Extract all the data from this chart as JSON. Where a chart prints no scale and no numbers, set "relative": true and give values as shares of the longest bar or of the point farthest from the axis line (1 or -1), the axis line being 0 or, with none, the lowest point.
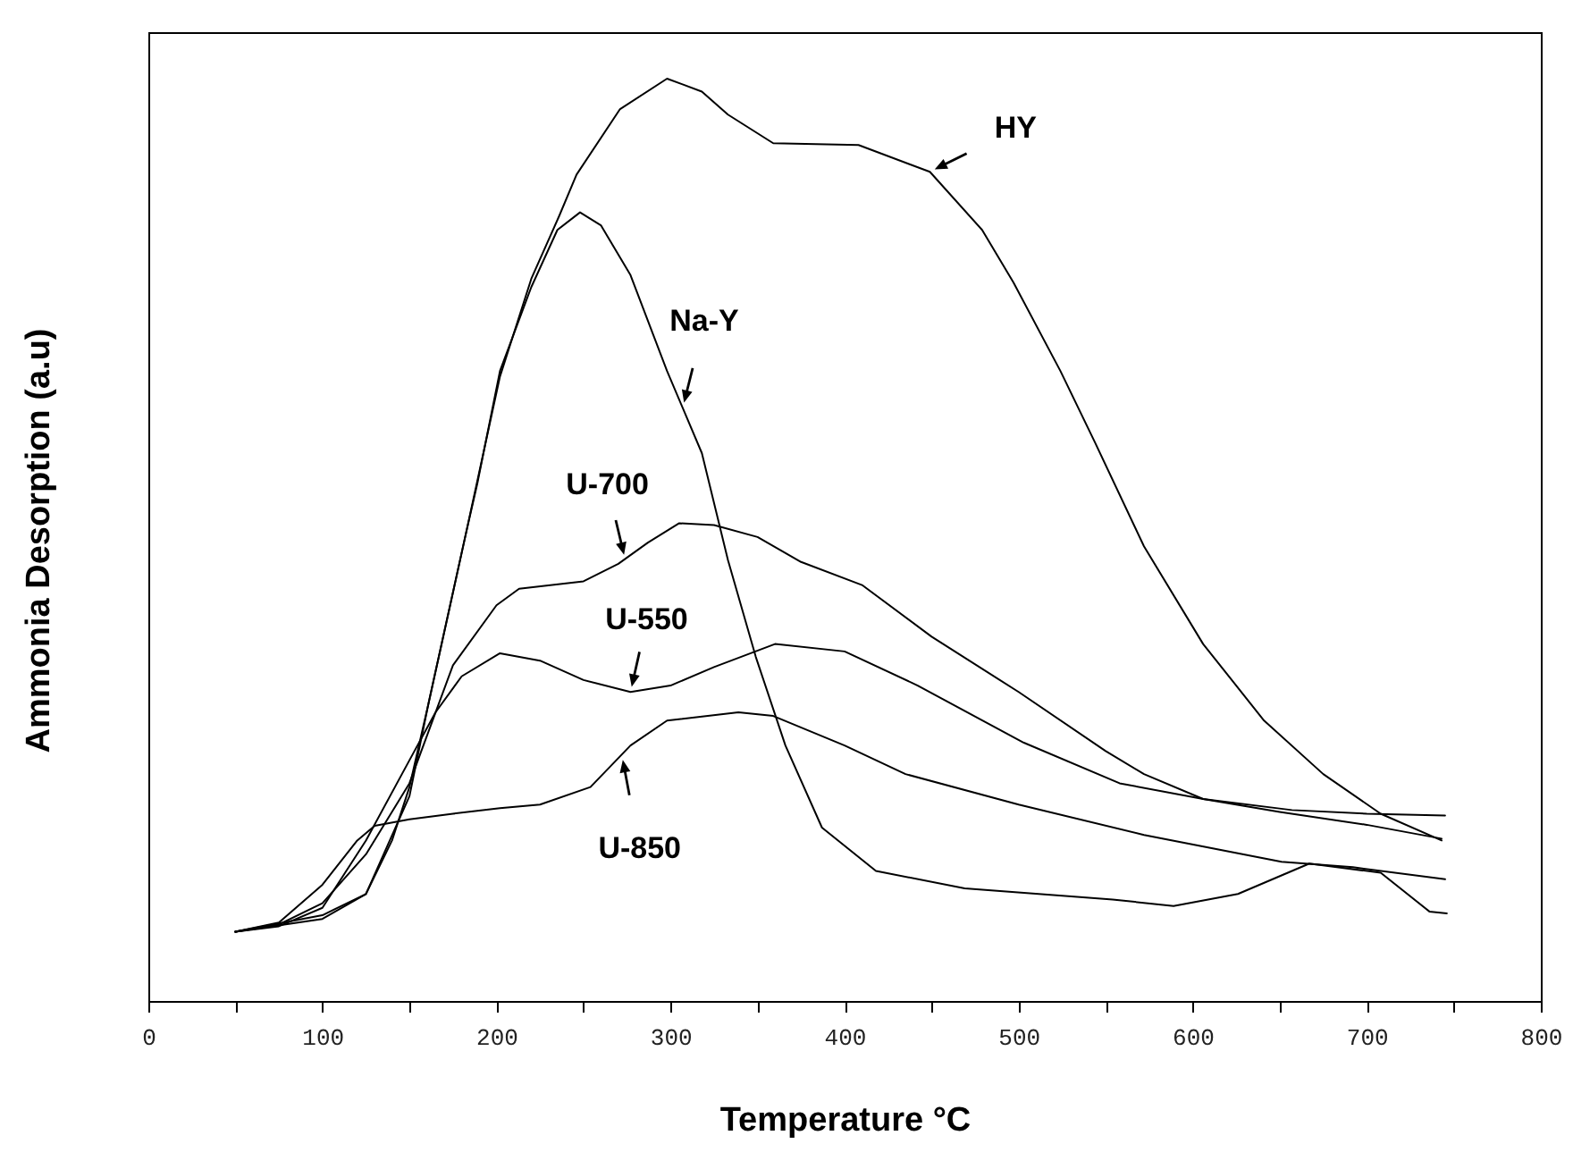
{
  "chart_data": {
    "type": "line",
    "relative": true,
    "xlabel": "Temperature °C",
    "ylabel": "Ammonia Desorption (a.u)",
    "xlim": [
      0,
      800
    ],
    "xticks": [
      0,
      {
        "value": 50,
        "label": null
      },
      100,
      {
        "value": 150,
        "label": null
      },
      200,
      {
        "value": 250,
        "label": null
      },
      300,
      {
        "value": 350,
        "label": null
      },
      400,
      {
        "value": 450,
        "label": null
      },
      500,
      {
        "value": 550,
        "label": null
      },
      600,
      {
        "value": 650,
        "label": null
      },
      700,
      {
        "value": 750,
        "label": null
      },
      800
    ],
    "grid": false,
    "marker": "none",
    "line_style": "solid",
    "series": [
      {
        "color": "#000000",
        "x": [
          50,
          100,
          125,
          150,
          161,
          182,
          202,
          220,
          236,
          246,
          271,
          298,
          318,
          333,
          359,
          408,
          449,
          479,
          497,
          524,
          544,
          572,
          606,
          641,
          675,
          708,
          743
        ],
        "values": [
          0.075,
          0.093,
          0.116,
          0.222,
          0.323,
          0.503,
          0.677,
          0.783,
          0.851,
          0.896,
          0.967,
          1.0,
          0.986,
          0.961,
          0.93,
          0.928,
          0.899,
          0.836,
          0.779,
          0.683,
          0.605,
          0.493,
          0.387,
          0.304,
          0.246,
          0.203,
          0.174
        ]
      },
      {
        "color": "#000000",
        "x": [
          50,
          100,
          125,
          140,
          150,
          161,
          182,
          189,
          202,
          220,
          235,
          248,
          260,
          277,
          298,
          318,
          333,
          349,
          366,
          387,
          418,
          469,
          554,
          589,
          626,
          667,
          708,
          736,
          746
        ],
        "values": [
          0.075,
          0.089,
          0.116,
          0.174,
          0.232,
          0.323,
          0.503,
          0.561,
          0.683,
          0.774,
          0.836,
          0.855,
          0.841,
          0.787,
          0.683,
          0.594,
          0.478,
          0.373,
          0.277,
          0.188,
          0.141,
          0.122,
          0.11,
          0.103,
          0.116,
          0.149,
          0.139,
          0.097,
          0.095
        ]
      },
      {
        "color": "#000000",
        "x": [
          50,
          75,
          100,
          125,
          150,
          175,
          200,
          213,
          250,
          270,
          287,
          305,
          325,
          350,
          375,
          410,
          450,
          500,
          550,
          572,
          606,
          650,
          700,
          743
        ],
        "values": [
          0.075,
          0.083,
          0.106,
          0.159,
          0.236,
          0.364,
          0.429,
          0.447,
          0.455,
          0.474,
          0.497,
          0.518,
          0.516,
          0.503,
          0.476,
          0.451,
          0.395,
          0.335,
          0.271,
          0.246,
          0.219,
          0.205,
          0.191,
          0.176
        ]
      },
      {
        "color": "#000000",
        "x": [
          50,
          75,
          100,
          125,
          150,
          165,
          180,
          202,
          225,
          250,
          277,
          300,
          325,
          360,
          400,
          442,
          503,
          558,
          606,
          657,
          700,
          745
        ],
        "values": [
          0.075,
          0.081,
          0.101,
          0.174,
          0.261,
          0.313,
          0.352,
          0.377,
          0.369,
          0.348,
          0.335,
          0.342,
          0.362,
          0.387,
          0.379,
          0.342,
          0.28,
          0.236,
          0.219,
          0.207,
          0.203,
          0.201
        ]
      },
      {
        "color": "#000000",
        "x": [
          50,
          75,
          100,
          120,
          130,
          150,
          175,
          202,
          225,
          254,
          277,
          298,
          339,
          359,
          400,
          435,
          500,
          572,
          651,
          692,
          745
        ],
        "values": [
          0.075,
          0.085,
          0.126,
          0.174,
          0.19,
          0.197,
          0.203,
          0.209,
          0.213,
          0.232,
          0.277,
          0.304,
          0.313,
          0.309,
          0.277,
          0.246,
          0.213,
          0.18,
          0.151,
          0.145,
          0.132
        ]
      }
    ],
    "annotations": [
      {
        "text": "HY",
        "x": 449,
        "y": 0.899
      },
      {
        "text": "Na-Y",
        "x": 307,
        "y": 0.643
      },
      {
        "text": "U-700",
        "x": 274,
        "y": 0.478
      },
      {
        "text": "U-550",
        "x": 277,
        "y": 0.335
      },
      {
        "text": "U-850",
        "x": 272,
        "y": 0.267
      }
    ]
  }
}
